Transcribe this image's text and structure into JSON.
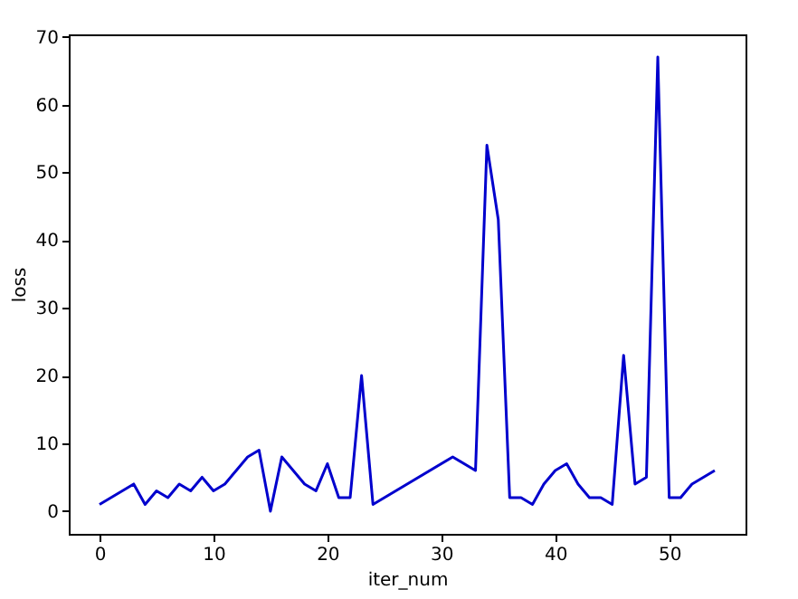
{
  "chart_data": {
    "type": "line",
    "xlabel": "iter_num",
    "ylabel": "loss",
    "x": [
      0,
      3,
      4,
      5,
      6,
      7,
      8,
      9,
      10,
      11,
      12,
      13,
      14,
      15,
      16,
      18,
      19,
      20,
      21,
      22,
      23,
      24,
      31,
      33,
      34,
      35,
      36,
      37,
      38,
      39,
      40,
      41,
      42,
      43,
      44,
      45,
      46,
      47,
      48,
      49,
      50,
      51,
      52,
      54
    ],
    "series": [
      {
        "color": "#0000cd",
        "values": [
          1,
          4,
          1,
          3,
          2,
          4,
          3,
          5,
          3,
          4,
          6,
          8,
          9,
          0,
          8,
          4,
          3,
          7,
          2,
          2,
          20,
          1,
          8,
          6,
          54,
          43,
          2,
          2,
          1,
          4,
          6,
          7,
          4,
          2,
          2,
          1,
          23,
          4,
          5,
          67,
          2,
          2,
          4,
          6
        ]
      }
    ],
    "xlim": [
      -2.7,
      56.7
    ],
    "ylim": [
      -3.35,
      70.35
    ],
    "xticks": [
      0,
      10,
      20,
      30,
      40,
      50
    ],
    "yticks": [
      0,
      10,
      20,
      30,
      40,
      50,
      60,
      70
    ],
    "grid": false,
    "marker": "none",
    "line_style": "solid"
  }
}
